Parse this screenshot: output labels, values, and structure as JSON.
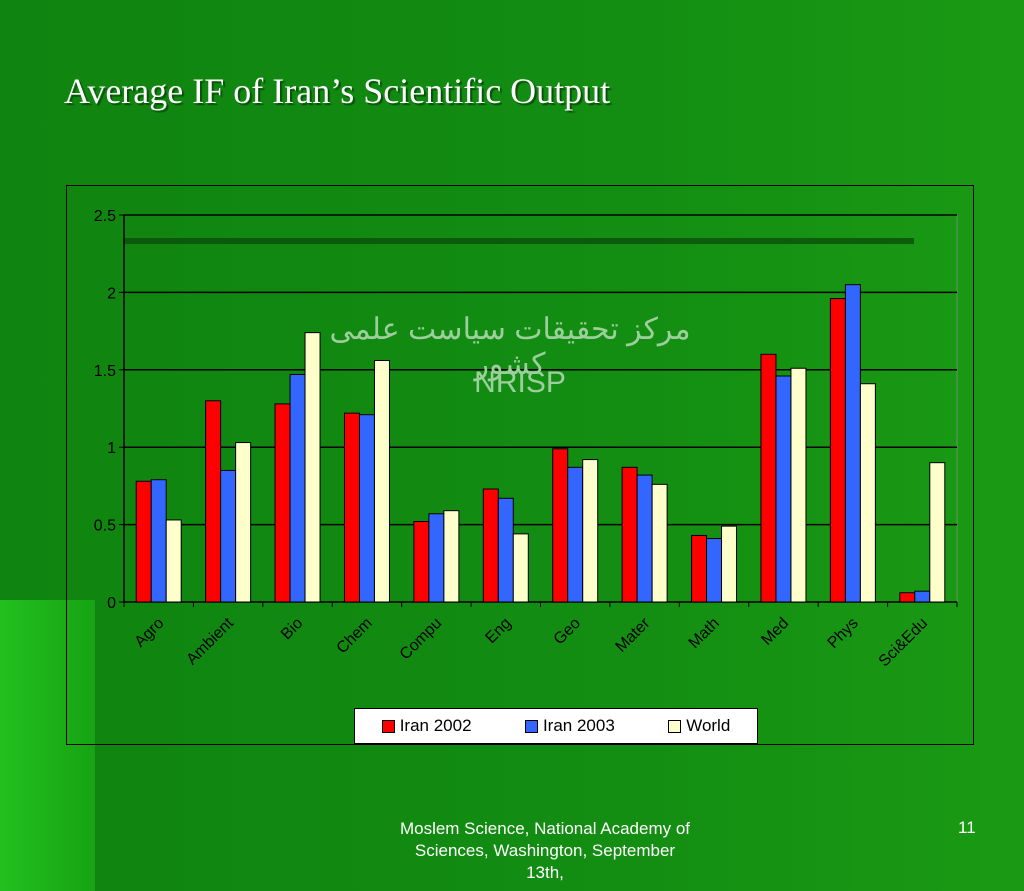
{
  "slide": {
    "title": "Average IF of Iran’s Scientific Output",
    "footer": "Moslem Science, National Academy of Sciences, Washington, September 13th,",
    "page_number": "11",
    "watermark_arabic": "مرکز تحقیقات سیاست علمی کشور",
    "watermark_english": "NRISP"
  },
  "chart_data": {
    "type": "bar",
    "categories": [
      "Agro",
      "Ambient",
      "Bio",
      "Chem",
      "Compu",
      "Eng",
      "Geo",
      "Mater",
      "Math",
      "Med",
      "Phys",
      "Sci&Edu"
    ],
    "series": [
      {
        "name": "Iran 2002",
        "color": "#ff0000",
        "values": [
          0.78,
          1.3,
          1.28,
          1.22,
          0.52,
          0.73,
          0.99,
          0.87,
          0.43,
          1.6,
          1.96,
          0.06
        ]
      },
      {
        "name": "Iran 2003",
        "color": "#3366ff",
        "values": [
          0.79,
          0.85,
          1.47,
          1.21,
          0.57,
          0.67,
          0.87,
          0.82,
          0.41,
          1.46,
          2.05,
          0.07
        ]
      },
      {
        "name": "World",
        "color": "#ffffcc",
        "values": [
          0.53,
          1.03,
          1.74,
          1.56,
          0.59,
          0.44,
          0.92,
          0.76,
          0.49,
          1.51,
          1.41,
          0.9
        ]
      }
    ],
    "y_ticks": [
      "0",
      "0.5",
      "1",
      "1.5",
      "2",
      "2.5"
    ],
    "ylim": [
      0,
      2.5
    ],
    "grid": true,
    "legend_position": "bottom"
  }
}
